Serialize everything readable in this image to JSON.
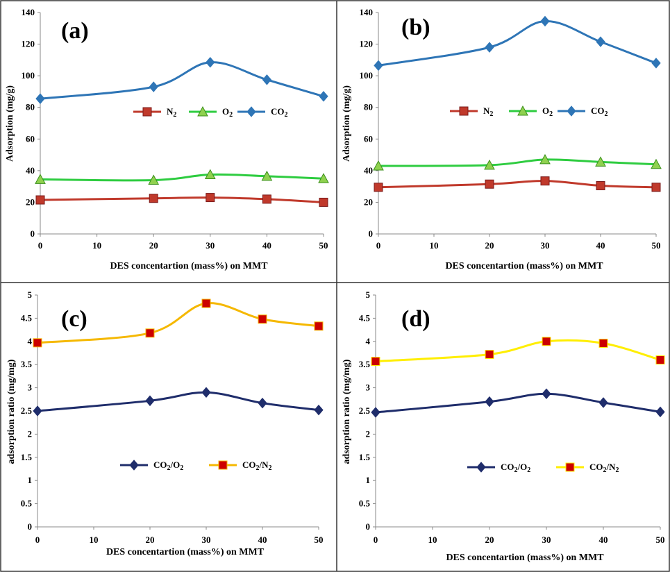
{
  "chart_data": [
    {
      "type": "line",
      "panel_label": "(a)",
      "xlabel": "DES concentartion (mass%) on MMT",
      "ylabel": "Adsorption  (mg/g)",
      "x": [
        0,
        20,
        30,
        40,
        50
      ],
      "xticks": [
        "0",
        "10",
        "20",
        "30",
        "40",
        "50"
      ],
      "yticks": [
        "0",
        "20",
        "40",
        "60",
        "80",
        "100",
        "120",
        "140"
      ],
      "ylim": [
        0,
        140
      ],
      "legend_position": "middle",
      "series": [
        {
          "name": "N2",
          "sub": "2",
          "base": "N",
          "marker": "square",
          "color": "#c0392b",
          "values": [
            21.5,
            22.5,
            23,
            22,
            20
          ]
        },
        {
          "name": "O2",
          "sub": "2",
          "base": "O",
          "marker": "triangle",
          "color": "#2ecc40",
          "values": [
            34.5,
            34,
            37.5,
            36.5,
            35
          ]
        },
        {
          "name": "CO2",
          "sub": "2",
          "base": "CO",
          "marker": "diamond",
          "color": "#2e75b6",
          "values": [
            85.5,
            93,
            108.5,
            97.5,
            87
          ]
        }
      ]
    },
    {
      "type": "line",
      "panel_label": "(b)",
      "xlabel": "DES concentartion (mass%) on MMT",
      "ylabel": "Adsorption  (mg/g)",
      "x": [
        0,
        20,
        30,
        40,
        50
      ],
      "xticks": [
        "0",
        "10",
        "20",
        "30",
        "40",
        "50"
      ],
      "yticks": [
        "0",
        "20",
        "40",
        "60",
        "80",
        "100",
        "120",
        "140"
      ],
      "ylim": [
        0,
        140
      ],
      "legend_position": "middle",
      "series": [
        {
          "name": "N2",
          "sub": "2",
          "base": "N",
          "marker": "square",
          "color": "#c0392b",
          "values": [
            29.5,
            31.5,
            33.5,
            30.5,
            29.5
          ]
        },
        {
          "name": "O2",
          "sub": "2",
          "base": "O",
          "marker": "triangle",
          "color": "#2ecc40",
          "values": [
            43,
            43.5,
            47,
            45.5,
            44
          ]
        },
        {
          "name": "CO2",
          "sub": "2",
          "base": "CO",
          "marker": "diamond",
          "color": "#2e75b6",
          "values": [
            106.5,
            118,
            134.5,
            121.5,
            108
          ]
        }
      ]
    },
    {
      "type": "line",
      "panel_label": "(c)",
      "xlabel": "DES concentartion (mass%) on MMT",
      "ylabel": "adsorption ratio (mg/mg)",
      "x": [
        0,
        20,
        30,
        40,
        50
      ],
      "xticks": [
        "0",
        "10",
        "20",
        "30",
        "40",
        "50"
      ],
      "yticks": [
        "0",
        "0.5",
        "1",
        "1.5",
        "2",
        "2.5",
        "3",
        "3.5",
        "4",
        "4.5",
        "5"
      ],
      "ylim": [
        0,
        5
      ],
      "legend_position": "lower-middle",
      "series": [
        {
          "name": "CO2/O2",
          "base": "CO",
          "sub": "2",
          "tail": "/O",
          "tailsub": "2",
          "marker": "diamond",
          "color": "#1f2d6b",
          "values": [
            2.5,
            2.72,
            2.9,
            2.67,
            2.52
          ]
        },
        {
          "name": "CO2/N2",
          "base": "CO",
          "sub": "2",
          "tail": "/N",
          "tailsub": "2",
          "marker": "square",
          "color": "#f5b800",
          "markerFill": "#cc0000",
          "values": [
            3.97,
            4.18,
            4.82,
            4.48,
            4.33
          ]
        }
      ]
    },
    {
      "type": "line",
      "panel_label": "(d)",
      "xlabel": "DES concentartion (mass%) on MMT",
      "ylabel": "adsorption ratio (mg/mg)",
      "x": [
        0,
        20,
        30,
        40,
        50
      ],
      "xticks": [
        "0",
        "10",
        "20",
        "30",
        "40",
        "50"
      ],
      "yticks": [
        "0",
        "0.5",
        "1",
        "1.5",
        "2",
        "2.5",
        "3",
        "3.5",
        "4",
        "4.5",
        "5"
      ],
      "ylim": [
        0,
        5
      ],
      "legend_position": "lower-middle",
      "series": [
        {
          "name": "CO2/O2",
          "base": "CO",
          "sub": "2",
          "tail": "/O",
          "tailsub": "2",
          "marker": "diamond",
          "color": "#1f2d6b",
          "values": [
            2.47,
            2.7,
            2.87,
            2.68,
            2.48
          ]
        },
        {
          "name": "CO2/N2",
          "base": "CO",
          "sub": "2",
          "tail": "/N",
          "tailsub": "2",
          "marker": "square",
          "color": "#ffee00",
          "markerFill": "#cc0000",
          "values": [
            3.57,
            3.72,
            4,
            3.96,
            3.6
          ]
        }
      ]
    }
  ]
}
